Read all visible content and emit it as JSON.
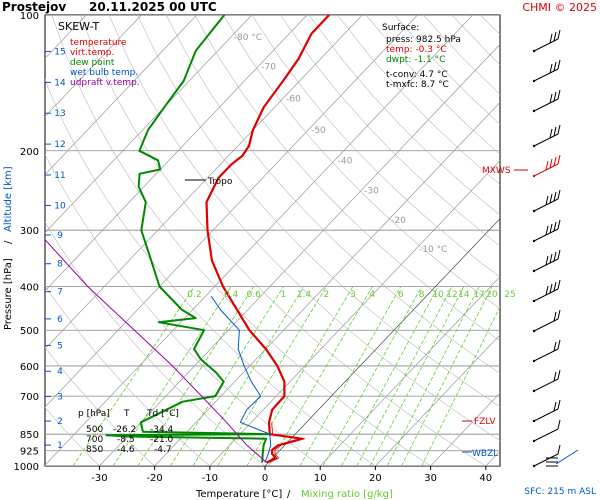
{
  "header": {
    "station": "Prostejov",
    "datetime": "20.11.2025 00 UTC",
    "credit": "CHMI © 2025"
  },
  "legend": {
    "title": "SKEW-T",
    "items": [
      {
        "label": "temperature",
        "color": "#dd0000"
      },
      {
        "label": "virt.temp.",
        "color": "#dd0000"
      },
      {
        "label": "dew point",
        "color": "#008800"
      },
      {
        "label": "wet bulb temp.",
        "color": "#0055cc"
      },
      {
        "label": "udpraft v.temp.",
        "color": "#9900aa"
      }
    ]
  },
  "surface": {
    "title": "Surface:",
    "press": "press: 982.5 hPa",
    "temp": "temp: -0.3 °C",
    "dwpt": "dwpt: -1.1 °C",
    "tconv": "t-conv: 4.7 °C",
    "tmxfc": "t-mxfc: 8.7 °C"
  },
  "table": {
    "headers": [
      "p [hPa]",
      "T",
      "Td [°C]"
    ],
    "rows": [
      [
        "500",
        "-26.2",
        "-34.4"
      ],
      [
        "700",
        "-8.5",
        "-21.0"
      ],
      [
        "850",
        "-4.6",
        "-4.7"
      ]
    ]
  },
  "labels": {
    "tropo": "Tropo",
    "mxws": "MXWS",
    "fzlv": "FZLV",
    "wbzl": "WBZL",
    "sfc": "SFC: 215 m ASL",
    "xlabel_temp": "Temperature [°C]",
    "xlabel_sep": "/",
    "xlabel_mix": "Mixing ratio [g/kg]",
    "ylabel_p": "Pressure [hPa]",
    "ylabel_sep": "/",
    "ylabel_alt": "Altitude [km]"
  },
  "colors": {
    "temperature": "#dd0000",
    "dewpoint": "#008800",
    "wetbulb": "#0055cc",
    "parcel": "#9900aa",
    "mixing": "#66cc33",
    "isotherm": "#555555"
  },
  "chart_data": {
    "type": "line",
    "title": "SKEW-T",
    "xlabel": "Temperature [°C] / Mixing ratio [g/kg]",
    "ylabel": "Pressure [hPa] / Altitude [km]",
    "xlim": [
      -37,
      47
    ],
    "ylim": [
      1000,
      100
    ],
    "y_scale": "log",
    "x_ticks": [
      -30,
      -20,
      -10,
      0,
      10,
      20,
      30,
      40
    ],
    "p_ticks": [
      100,
      200,
      300,
      400,
      500,
      600,
      700,
      850,
      925,
      1000
    ],
    "km_ticks": [
      1,
      2,
      3,
      4,
      5,
      6,
      7,
      8,
      9,
      10,
      11,
      12,
      13,
      14,
      15
    ],
    "isotherm_labels": [
      -80,
      -70,
      -60,
      -50,
      -40,
      -30,
      -20,
      -10
    ],
    "mixing_ratio_labels": [
      "0.2",
      "0.4",
      "0.6",
      "1",
      "1.4",
      "2",
      "3",
      "4",
      "6",
      "8",
      "10",
      "12",
      "14",
      "17",
      "20",
      "25"
    ],
    "series": [
      {
        "name": "temperature",
        "points": [
          [
            982.5,
            -0.3
          ],
          [
            960,
            0.6
          ],
          [
            940,
            -0.8
          ],
          [
            920,
            -1.5
          ],
          [
            900,
            -1.2
          ],
          [
            870,
            2
          ],
          [
            850,
            -4.6
          ],
          [
            800,
            -6.8
          ],
          [
            750,
            -8.4
          ],
          [
            700,
            -8.5
          ],
          [
            650,
            -11
          ],
          [
            600,
            -15
          ],
          [
            550,
            -20
          ],
          [
            500,
            -26.2
          ],
          [
            450,
            -32
          ],
          [
            400,
            -38.5
          ],
          [
            350,
            -45
          ],
          [
            300,
            -51
          ],
          [
            260,
            -56
          ],
          [
            230,
            -58
          ],
          [
            215,
            -58
          ],
          [
            205,
            -57.5
          ],
          [
            195,
            -58
          ],
          [
            180,
            -60
          ],
          [
            160,
            -62
          ],
          [
            140,
            -63
          ],
          [
            125,
            -64
          ],
          [
            110,
            -66
          ],
          [
            100,
            -66
          ]
        ]
      },
      {
        "name": "dew point",
        "points": [
          [
            982.5,
            -1.1
          ],
          [
            940,
            -2.5
          ],
          [
            900,
            -3.8
          ],
          [
            870,
            -4.5
          ],
          [
            860,
            -30
          ],
          [
            855,
            -34
          ],
          [
            850,
            -4.7
          ],
          [
            840,
            -28
          ],
          [
            800,
            -30
          ],
          [
            760,
            -28
          ],
          [
            720,
            -26
          ],
          [
            700,
            -21.0
          ],
          [
            650,
            -22
          ],
          [
            620,
            -25
          ],
          [
            580,
            -30
          ],
          [
            550,
            -33
          ],
          [
            500,
            -34.4
          ],
          [
            480,
            -44
          ],
          [
            470,
            -38
          ],
          [
            450,
            -42
          ],
          [
            400,
            -50
          ],
          [
            350,
            -56
          ],
          [
            300,
            -63
          ],
          [
            260,
            -67
          ],
          [
            240,
            -71
          ],
          [
            225,
            -73
          ],
          [
            220,
            -70
          ],
          [
            210,
            -72
          ],
          [
            200,
            -77
          ],
          [
            180,
            -79
          ],
          [
            160,
            -80
          ],
          [
            140,
            -81
          ],
          [
            120,
            -84
          ],
          [
            100,
            -85
          ]
        ]
      },
      {
        "name": "wet bulb temp.",
        "points": [
          [
            982.5,
            -0.6
          ],
          [
            940,
            -1.5
          ],
          [
            900,
            -2.5
          ],
          [
            850,
            -4.6
          ],
          [
            800,
            -12
          ],
          [
            750,
            -13
          ],
          [
            700,
            -12.8
          ],
          [
            650,
            -17
          ],
          [
            600,
            -21
          ],
          [
            550,
            -25
          ],
          [
            500,
            -28
          ],
          [
            450,
            -35
          ],
          [
            420,
            -39
          ]
        ]
      },
      {
        "name": "udpraft v.temp.",
        "points": [
          [
            982.5,
            -0.3
          ],
          [
            900,
            -6.8
          ],
          [
            800,
            -14.5
          ],
          [
            700,
            -23.5
          ],
          [
            600,
            -34
          ],
          [
            500,
            -47
          ],
          [
            400,
            -63
          ],
          [
            300,
            -82
          ],
          [
            200,
            -104
          ],
          [
            100,
            -135
          ]
        ]
      }
    ]
  }
}
